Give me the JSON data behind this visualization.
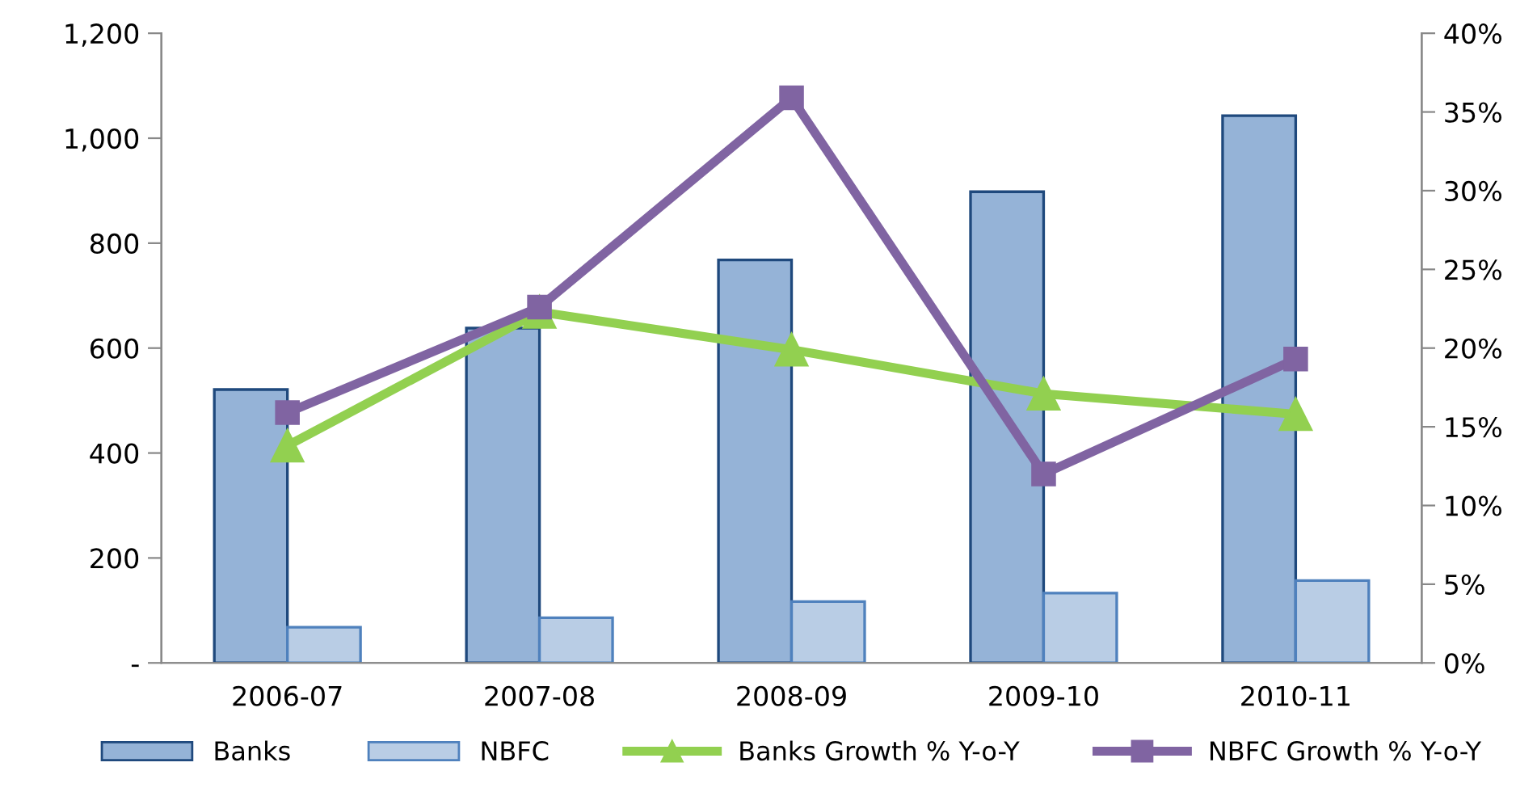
{
  "chart_data": {
    "type": "bar",
    "categories": [
      "2006-07",
      "2007-08",
      "2008-09",
      "2009-10",
      "2010-11"
    ],
    "series": [
      {
        "name": "Banks",
        "color": "#95b3d7",
        "values": [
          521,
          638,
          768,
          898,
          1043
        ]
      },
      {
        "name": "NBFC",
        "color": "#b9cde5",
        "values": [
          68,
          86,
          117,
          133,
          157
        ]
      },
      {
        "name": "Banks Growth % Y-o-Y",
        "type": "line",
        "axis": "y2",
        "marker": "triangle",
        "color": "#92d050",
        "values": [
          13.8,
          22.3,
          19.9,
          17.1,
          15.8
        ]
      },
      {
        "name": "NBFC Growth % Y-o-Y",
        "type": "line",
        "axis": "y2",
        "marker": "square",
        "color": "#8064a2",
        "values": [
          15.9,
          22.6,
          35.9,
          12.0,
          19.3
        ]
      }
    ],
    "ylim": [
      0,
      1200
    ],
    "yticks": [
      {
        "value": 0,
        "label": "-"
      },
      {
        "value": 200,
        "label": "200"
      },
      {
        "value": 400,
        "label": "400"
      },
      {
        "value": 600,
        "label": "600"
      },
      {
        "value": 800,
        "label": "800"
      },
      {
        "value": 1000,
        "label": "1,000"
      },
      {
        "value": 1200,
        "label": "1,200"
      }
    ],
    "y2lim": [
      0,
      40
    ],
    "y2ticks": [
      {
        "value": 0,
        "label": "0%"
      },
      {
        "value": 5,
        "label": "5%"
      },
      {
        "value": 10,
        "label": "10%"
      },
      {
        "value": 15,
        "label": "15%"
      },
      {
        "value": 20,
        "label": "20%"
      },
      {
        "value": 25,
        "label": "25%"
      },
      {
        "value": 30,
        "label": "30%"
      },
      {
        "value": 35,
        "label": "35%"
      },
      {
        "value": 40,
        "label": "40%"
      }
    ],
    "grid": false,
    "legend": "bottom",
    "line_style": "solid"
  }
}
